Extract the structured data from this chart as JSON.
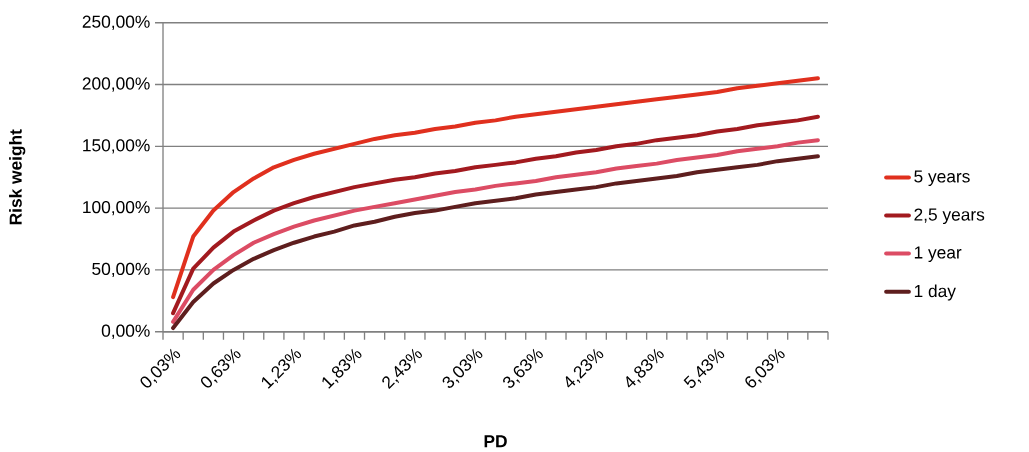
{
  "chart_data": {
    "type": "line",
    "xlabel": "PD",
    "ylabel": "Risk weight",
    "categories": [
      "0,03%",
      null,
      null,
      "0,63%",
      null,
      null,
      "1,23%",
      null,
      null,
      "1,83%",
      null,
      null,
      "2,43%",
      null,
      null,
      "3,03%",
      null,
      null,
      "3,63%",
      null,
      null,
      "4,23%",
      null,
      null,
      "4,83%",
      null,
      null,
      "5,43%",
      null,
      null,
      "6,03%",
      null,
      null
    ],
    "series": [
      {
        "name": "5 years",
        "color": "#e0301e",
        "values": [
          28,
          77,
          98,
          113,
          124,
          133,
          139,
          144,
          148,
          152,
          156,
          159,
          161,
          164,
          166,
          169,
          171,
          174,
          176,
          178,
          180,
          182,
          184,
          186,
          188,
          190,
          192,
          194,
          197,
          199,
          201,
          203,
          205
        ]
      },
      {
        "name": "2,5 years",
        "color": "#a21a1f",
        "values": [
          15,
          51,
          68,
          81,
          90,
          98,
          104,
          109,
          113,
          117,
          120,
          123,
          125,
          128,
          130,
          133,
          135,
          137,
          140,
          142,
          145,
          147,
          150,
          152,
          155,
          157,
          159,
          162,
          164,
          167,
          169,
          171,
          174
        ]
      },
      {
        "name": "1 year",
        "color": "#dc4c64",
        "values": [
          8,
          34,
          50,
          62,
          72,
          79,
          85,
          90,
          94,
          98,
          101,
          104,
          107,
          110,
          113,
          115,
          118,
          120,
          122,
          125,
          127,
          129,
          132,
          134,
          136,
          139,
          141,
          143,
          146,
          148,
          150,
          153,
          155
        ]
      },
      {
        "name": "1 day",
        "color": "#5e1e1e",
        "values": [
          3,
          24,
          39,
          50,
          59,
          66,
          72,
          77,
          81,
          86,
          89,
          93,
          96,
          98,
          101,
          104,
          106,
          108,
          111,
          113,
          115,
          117,
          120,
          122,
          124,
          126,
          129,
          131,
          133,
          135,
          138,
          140,
          142
        ]
      }
    ],
    "ylim": [
      0,
      250
    ],
    "yticks": [
      {
        "value": 0,
        "label": "0,00%"
      },
      {
        "value": 50,
        "label": "50,00%"
      },
      {
        "value": 100,
        "label": "100,00%"
      },
      {
        "value": 150,
        "label": "150,00%"
      },
      {
        "value": 200,
        "label": "200,00%"
      },
      {
        "value": 250,
        "label": "250,00%"
      }
    ],
    "grid": "y",
    "legend": "right",
    "marker": "none",
    "line_style": "solid"
  }
}
